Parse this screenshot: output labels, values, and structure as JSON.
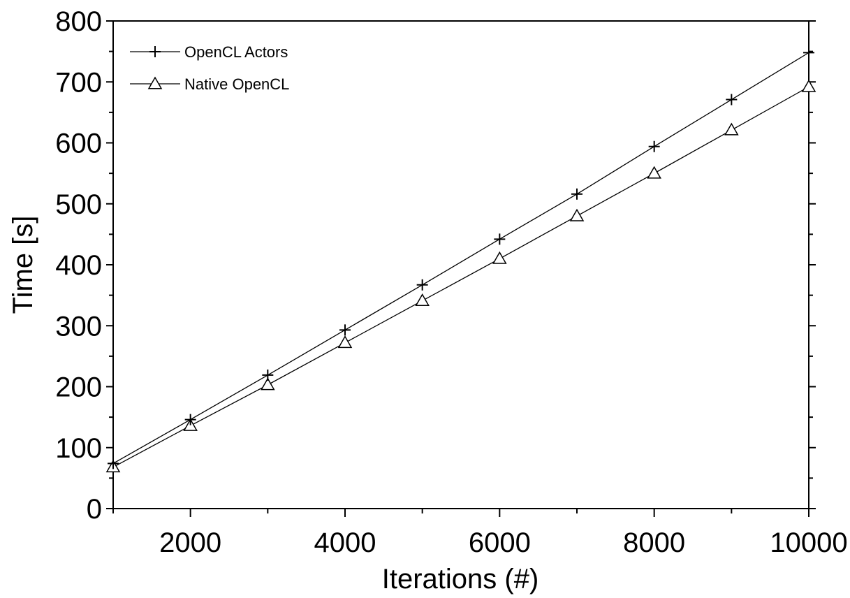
{
  "chart_data": {
    "type": "line",
    "title": "",
    "xlabel": "Iterations (#)",
    "ylabel": "Time [s]",
    "xlim": [
      1000,
      10000
    ],
    "ylim": [
      0,
      800
    ],
    "x_ticks": [
      2000,
      4000,
      6000,
      8000,
      10000
    ],
    "x_minor_ticks": [
      1000,
      3000,
      5000,
      7000,
      9000
    ],
    "y_ticks": [
      0,
      100,
      200,
      300,
      400,
      500,
      600,
      700,
      800
    ],
    "x_tick_labels": [
      "2000",
      "4000",
      "6000",
      "8000",
      "10000"
    ],
    "y_tick_labels": [
      "0",
      "100",
      "200",
      "300",
      "400",
      "500",
      "600",
      "700",
      "800"
    ],
    "grid": false,
    "legend_position": "top-left",
    "x": [
      1000,
      2000,
      3000,
      4000,
      5000,
      6000,
      7000,
      8000,
      9000,
      10000
    ],
    "series": [
      {
        "name": "OpenCL Actors",
        "marker": "plus",
        "color": "#000000",
        "values": [
          74,
          146,
          219,
          293,
          367,
          442,
          516,
          594,
          671,
          748
        ]
      },
      {
        "name": "Native OpenCL",
        "marker": "triangle",
        "color": "#000000",
        "values": [
          68,
          136,
          203,
          272,
          341,
          410,
          480,
          550,
          621,
          692
        ]
      }
    ]
  }
}
